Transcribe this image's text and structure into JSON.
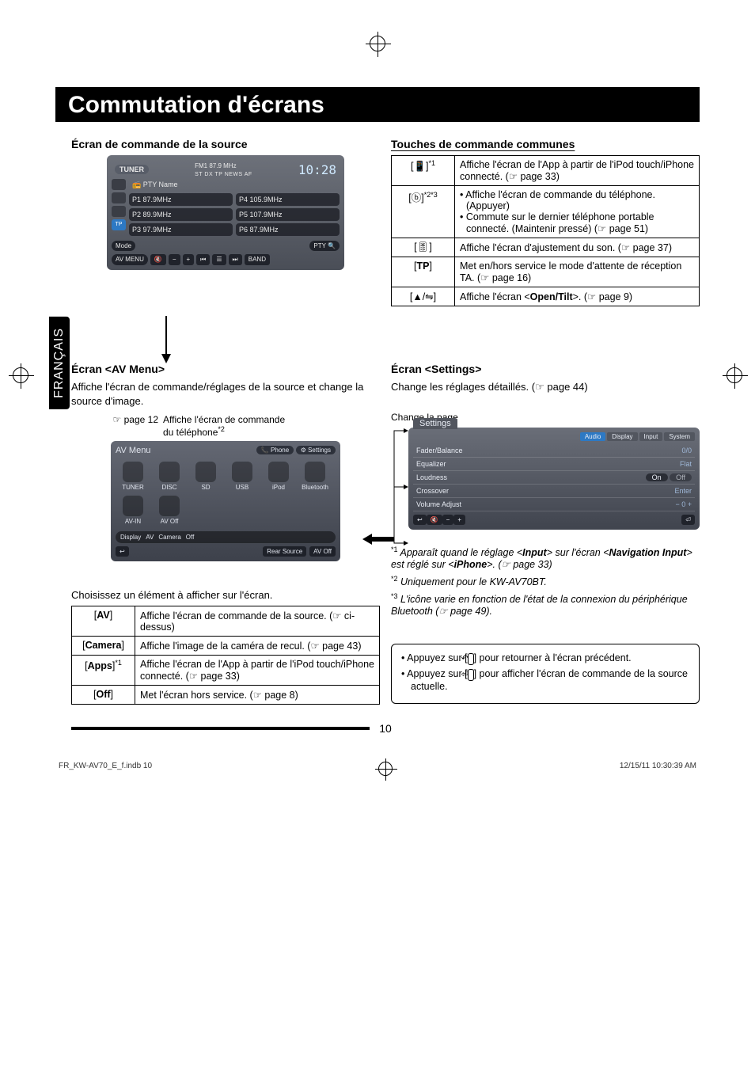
{
  "page": {
    "title": "Commutation d'écrans",
    "sidebar_lang": "FRANÇAIS",
    "page_number": "10"
  },
  "footer": {
    "file": "FR_KW-AV70_E_f.indb   10",
    "timestamp": "12/15/11   10:30:39 AM"
  },
  "source_screen": {
    "heading": "Écran de commande de la source",
    "tuner_label": "TUNER",
    "band_freq": "FM1   87.9 MHz",
    "indicators": "ST    DX    TP    NEWS    AF",
    "clock": "10:28",
    "pty": "PTY Name",
    "presets": [
      {
        "n": "P1",
        "f": "87.9MHz"
      },
      {
        "n": "P4",
        "f": "105.9MHz"
      },
      {
        "n": "P2",
        "f": "89.9MHz"
      },
      {
        "n": "P5",
        "f": "107.9MHz"
      },
      {
        "n": "P3",
        "f": "97.9MHz"
      },
      {
        "n": "P6",
        "f": "87.9MHz"
      }
    ],
    "tp_btn": "TP",
    "mode_btn": "Mode",
    "pty_btn": "PTY",
    "avmenu_btn": "AV MENU",
    "band_btn": "BAND"
  },
  "common_keys": {
    "heading": "Touches de commande communes",
    "rows": [
      {
        "key_icon": "[📱]",
        "key_sup": "*1",
        "desc": "Affiche l'écran de l'App à partir de l'iPod touch/iPhone connecté. (☞ page 33)"
      },
      {
        "key_icon": "[ⓑ]",
        "key_sup": "*2*3",
        "desc_list": [
          "Affiche l'écran de commande du téléphone. (Appuyer)",
          "Commute sur le dernier téléphone portable connecté. (Maintenir pressé) (☞ page 51)"
        ]
      },
      {
        "key_icon": "[🎚]",
        "key_sup": "",
        "desc": "Affiche l'écran d'ajustement du son. (☞ page 37)"
      },
      {
        "key_plain": "[TP]",
        "desc": "Met en/hors service le mode d'attente de réception TA. (☞ page 16)"
      },
      {
        "key_icon": "[▲/⇋]",
        "desc_html": "Affiche l'écran <<b>Open/Tilt</b>>. (☞ page 9)"
      }
    ]
  },
  "av_menu": {
    "heading": "Écran <AV Menu>",
    "desc": "Affiche l'écran de commande/réglages de la source et change la source d'image.",
    "callout_left": "☞ page 12",
    "callout_right_1": "Affiche l'écran de commande",
    "callout_right_2": "du téléphone",
    "callout_right_sup": "*2",
    "shot": {
      "title": "AV Menu",
      "btn_phone": "Phone",
      "btn_settings": "Settings",
      "icons": [
        "TUNER",
        "DISC",
        "SD",
        "USB",
        "iPod",
        "Bluetooth",
        "AV-IN",
        "AV Off"
      ],
      "bar": [
        "Display",
        "AV",
        "Camera",
        "Off"
      ],
      "bottom": [
        "↩",
        "",
        "Rear Source",
        "AV Off"
      ]
    },
    "choose_line": "Choisissez un élément à afficher sur l'écran.",
    "table": [
      {
        "k": "[AV]",
        "k_bold": "AV",
        "v": "Affiche l'écran de commande de la source. (☞ ci-dessus)"
      },
      {
        "k": "[Camera]",
        "k_bold": "Camera",
        "v": "Affiche l'image de la caméra de recul. (☞ page 43)"
      },
      {
        "k": "[Apps]",
        "k_bold": "Apps",
        "k_sup": "*1",
        "v": "Affiche l'écran de l'App à partir de l'iPod touch/iPhone connecté. (☞ page 33)"
      },
      {
        "k": "[Off]",
        "k_bold": "Off",
        "v": "Met l'écran hors service. (☞ page 8)"
      }
    ]
  },
  "settings": {
    "heading": "Écran <Settings>",
    "desc": "Change les réglages détaillés. (☞ page 44)",
    "change_page": "Change la page",
    "shot": {
      "title": "Settings",
      "tabs": [
        "Audio",
        "Display",
        "Input",
        "System"
      ],
      "rows": [
        {
          "l": "Fader/Balance",
          "v": "0/0"
        },
        {
          "l": "Equalizer",
          "v": "Flat"
        },
        {
          "l": "Loudness",
          "v": "On",
          "v2": "Off"
        },
        {
          "l": "Crossover",
          "v": "Enter"
        },
        {
          "l": "Volume Adjust",
          "v": "−    0    +"
        }
      ]
    }
  },
  "footnotes": {
    "f1_pre": "Apparaît quand le réglage <",
    "f1_b1": "Input",
    "f1_mid": "> sur l'écran <",
    "f1_b2": "Navigation Input",
    "f1_mid2": "> est réglé sur <",
    "f1_b3": "iPhone",
    "f1_post": ">. (☞ page 33)",
    "f2": "Uniquement pour le KW-AV70BT.",
    "f3": "L'icône varie en fonction de l'état de la connexion du périphérique Bluetooth (☞ page 49)."
  },
  "tips": {
    "t1_pre": "Appuyez sur [",
    "t1_icon": "↶",
    "t1_post": "] pour retourner à l'écran précédent.",
    "t2_pre": "Appuyez sur [",
    "t2_icon": "⏎",
    "t2_post": "] pour afficher l'écran de commande de la source actuelle."
  }
}
